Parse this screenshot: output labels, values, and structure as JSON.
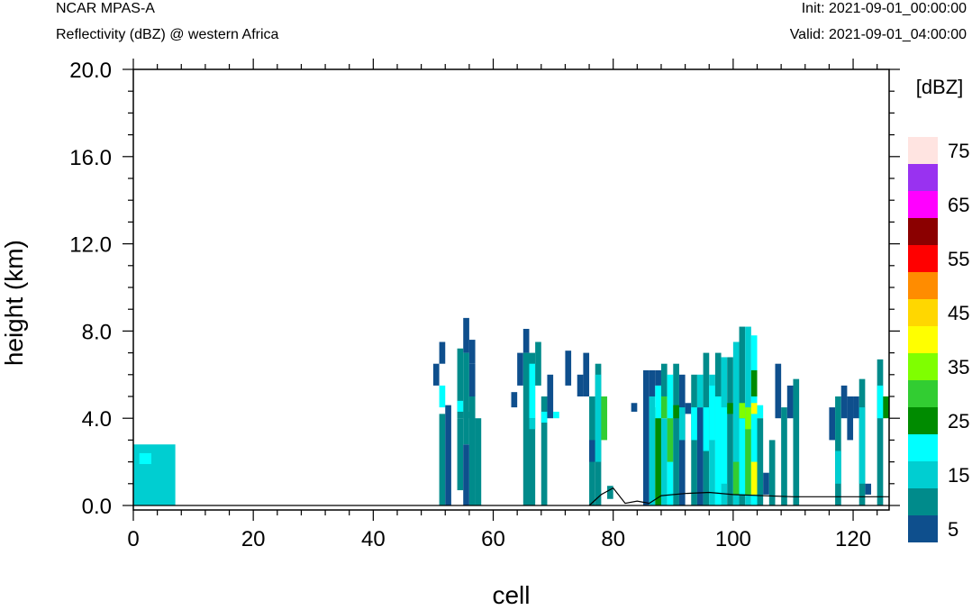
{
  "header": {
    "model": "NCAR MPAS-A",
    "field": "Reflectivity (dBZ) @ western Africa",
    "init": "Init: 2021-09-01_00:00:00",
    "valid": "Valid: 2021-09-01_04:00:00"
  },
  "chart_data": {
    "type": "heatmap",
    "title": "NCAR MPAS-A",
    "subtitle": "Reflectivity (dBZ) @ western Africa",
    "xlabel": "cell",
    "ylabel": "height (km)",
    "xlim": [
      0,
      126
    ],
    "ylim": [
      0,
      20
    ],
    "xticks": [
      0,
      20,
      40,
      60,
      80,
      100,
      120
    ],
    "xtick_labels": [
      "0",
      "20",
      "40",
      "60",
      "80",
      "100",
      "120"
    ],
    "yticks": [
      0,
      4,
      8,
      12,
      16,
      20
    ],
    "ytick_labels": [
      "0.0",
      "4.0",
      "8.0",
      "12.0",
      "16.0",
      "20.0"
    ],
    "colorbar": {
      "title": "[dBZ]",
      "labels": [
        "5",
        "15",
        "25",
        "35",
        "45",
        "55",
        "65",
        "75"
      ],
      "colors": [
        "#0e4f8d",
        "#008b8b",
        "#00ced1",
        "#00ffff",
        "#008b00",
        "#32cd32",
        "#7fff00",
        "#ffff00",
        "#ffd700",
        "#ff8c00",
        "#ff0000",
        "#8b0000",
        "#ff00ff",
        "#9932f0",
        "#ffe4e1"
      ]
    },
    "terrain": [
      [
        76,
        0.0
      ],
      [
        78,
        0.5
      ],
      [
        80,
        0.8
      ],
      [
        82,
        0.1
      ],
      [
        84,
        0.2
      ],
      [
        86,
        0.1
      ],
      [
        88,
        0.45
      ],
      [
        92,
        0.55
      ],
      [
        96,
        0.6
      ],
      [
        100,
        0.5
      ],
      [
        110,
        0.4
      ],
      [
        126,
        0.4
      ]
    ],
    "cells": [
      [
        0,
        7,
        0.0,
        2.8,
        2
      ],
      [
        1,
        3,
        1.9,
        2.4,
        3
      ],
      [
        50,
        51,
        5.5,
        6.5,
        0
      ],
      [
        51,
        52,
        6.5,
        7.5,
        0
      ],
      [
        51,
        52,
        4.5,
        5.5,
        3
      ],
      [
        51,
        52,
        0.0,
        4.2,
        1
      ],
      [
        52,
        53,
        0.0,
        4.6,
        0
      ],
      [
        55,
        56,
        7.0,
        8.6,
        0
      ],
      [
        54,
        55,
        4.0,
        7.2,
        1
      ],
      [
        55,
        56,
        4.0,
        7.0,
        1
      ],
      [
        54,
        55,
        4.3,
        4.8,
        3
      ],
      [
        54,
        55,
        0.7,
        4.0,
        1
      ],
      [
        55,
        56,
        0.0,
        2.8,
        0
      ],
      [
        55,
        56,
        2.8,
        4.3,
        1
      ],
      [
        56,
        57,
        5.0,
        6.5,
        0
      ],
      [
        56,
        57,
        0.0,
        5.0,
        1
      ],
      [
        56,
        57,
        6.5,
        7.6,
        0
      ],
      [
        57,
        58,
        0.0,
        4.0,
        1
      ],
      [
        63,
        64,
        4.5,
        5.2,
        0
      ],
      [
        64,
        65,
        5.5,
        7.0,
        0
      ],
      [
        65,
        66,
        7.0,
        8.1,
        0
      ],
      [
        65,
        67,
        0.0,
        7.0,
        1
      ],
      [
        66,
        67,
        4.0,
        6.5,
        3
      ],
      [
        66,
        67,
        3.5,
        4.0,
        2
      ],
      [
        67,
        68,
        5.5,
        7.5,
        1
      ],
      [
        68,
        69,
        0.0,
        5.0,
        1
      ],
      [
        68,
        69,
        3.8,
        4.3,
        3
      ],
      [
        69,
        70,
        4.0,
        6.0,
        0
      ],
      [
        70,
        71,
        4.0,
        4.3,
        3
      ],
      [
        72,
        73,
        5.5,
        7.1,
        0
      ],
      [
        74,
        75,
        5.0,
        6.0,
        0
      ],
      [
        75,
        76,
        5.0,
        7.0,
        0
      ],
      [
        76,
        77,
        0.0,
        5.0,
        1
      ],
      [
        76,
        77,
        2.0,
        3.0,
        0
      ],
      [
        77,
        78,
        0.0,
        6.5,
        1
      ],
      [
        77,
        78,
        2.0,
        6.0,
        2
      ],
      [
        78,
        79,
        3.0,
        5.0,
        5
      ],
      [
        79,
        80,
        0.3,
        0.9,
        1
      ],
      [
        83,
        84,
        4.3,
        4.7,
        0
      ],
      [
        85,
        86,
        0.0,
        6.2,
        0
      ],
      [
        86,
        87,
        0.0,
        5.0,
        2
      ],
      [
        86,
        87,
        5.0,
        6.2,
        0
      ],
      [
        87,
        88,
        0.0,
        4.5,
        4
      ],
      [
        87,
        88,
        4.0,
        5.5,
        3
      ],
      [
        87,
        88,
        5.5,
        6.2,
        0
      ],
      [
        88,
        89,
        0.0,
        4.0,
        2
      ],
      [
        88,
        89,
        4.0,
        5.0,
        5
      ],
      [
        88,
        89,
        5.0,
        6.5,
        1
      ],
      [
        89,
        90,
        0.0,
        6.0,
        3
      ],
      [
        89,
        90,
        2.0,
        4.0,
        5
      ],
      [
        90,
        91,
        0.0,
        6.5,
        1
      ],
      [
        90,
        91,
        4.0,
        4.6,
        4
      ],
      [
        91,
        92,
        0.0,
        6.0,
        0
      ],
      [
        91,
        92,
        3.0,
        4.5,
        2
      ],
      [
        92,
        93,
        4.2,
        4.7,
        0
      ],
      [
        93,
        94,
        0.0,
        6.0,
        1
      ],
      [
        93,
        94,
        3.0,
        4.5,
        3
      ],
      [
        94,
        95,
        0.0,
        4.5,
        0
      ],
      [
        94,
        95,
        4.5,
        6.0,
        2
      ],
      [
        95,
        96,
        0.0,
        7.0,
        1
      ],
      [
        95,
        96,
        2.5,
        4.5,
        3
      ],
      [
        96,
        97,
        0.0,
        6.0,
        2
      ],
      [
        96,
        97,
        3.0,
        5.5,
        3
      ],
      [
        97,
        98,
        0.0,
        5.0,
        3
      ],
      [
        97,
        98,
        5.0,
        7.0,
        1
      ],
      [
        98,
        99,
        0.0,
        6.8,
        2
      ],
      [
        98,
        99,
        1.0,
        4.5,
        3
      ],
      [
        99,
        100,
        0.0,
        6.8,
        1
      ],
      [
        99,
        100,
        4.2,
        4.7,
        4
      ],
      [
        100,
        101,
        0.0,
        7.5,
        2
      ],
      [
        100,
        101,
        0.5,
        2.0,
        5
      ],
      [
        101,
        102,
        0.0,
        8.2,
        1
      ],
      [
        101,
        102,
        0.5,
        4.0,
        3
      ],
      [
        101,
        102,
        4.0,
        4.7,
        6
      ],
      [
        102,
        103,
        0.0,
        8.2,
        2
      ],
      [
        102,
        103,
        0.5,
        3.5,
        5
      ],
      [
        102,
        103,
        3.5,
        4.5,
        6
      ],
      [
        103,
        104,
        0.0,
        7.8,
        3
      ],
      [
        103,
        104,
        0.5,
        2.0,
        7
      ],
      [
        103,
        104,
        4.2,
        4.7,
        7
      ],
      [
        103,
        104,
        5.0,
        6.2,
        4
      ],
      [
        104,
        105,
        4.0,
        4.6,
        3
      ],
      [
        104,
        105,
        0.0,
        4.0,
        1
      ],
      [
        105,
        106,
        0.5,
        1.5,
        0
      ],
      [
        106,
        107,
        0.0,
        3.0,
        1
      ],
      [
        107,
        108,
        4.0,
        6.5,
        0
      ],
      [
        108,
        109,
        0.0,
        4.5,
        1
      ],
      [
        109,
        110,
        4.0,
        5.5,
        0
      ],
      [
        110,
        111,
        0.0,
        5.8,
        1
      ],
      [
        116,
        117,
        3.0,
        4.5,
        0
      ],
      [
        117,
        118,
        0.0,
        5.0,
        1
      ],
      [
        117,
        118,
        1.0,
        2.5,
        2
      ],
      [
        118,
        119,
        4.0,
        5.5,
        0
      ],
      [
        119,
        120,
        3.0,
        5.0,
        0
      ],
      [
        120,
        121,
        4.0,
        5.0,
        0
      ],
      [
        121,
        122,
        0.0,
        5.8,
        1
      ],
      [
        121,
        122,
        1.0,
        4.5,
        2
      ],
      [
        122,
        123,
        0.5,
        1.0,
        0
      ],
      [
        124,
        125,
        0.0,
        6.7,
        1
      ],
      [
        124,
        125,
        4.0,
        5.5,
        3
      ],
      [
        125,
        126,
        4.0,
        5.0,
        4
      ]
    ]
  }
}
